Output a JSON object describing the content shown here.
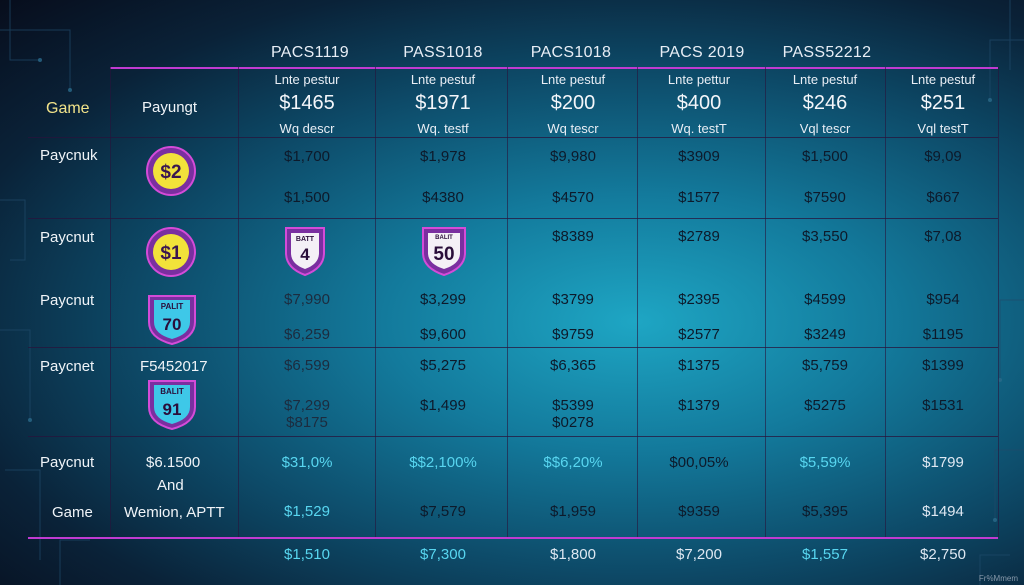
{
  "columns": [
    "PACS1119",
    "PASS1018",
    "PACS1018",
    "PACS 2019",
    "PASS52212"
  ],
  "corner": {
    "game": "Game",
    "payungt": "Payungt"
  },
  "header_row": {
    "line1": [
      "Lnte pestur",
      "Lnte pestuf",
      "Lnte pestuf",
      "Lnte pettur",
      "Lnte pestuf",
      "Lnte pestuf"
    ],
    "price": [
      "$1465",
      "$1971",
      "$200",
      "$400",
      "$246",
      "$251"
    ],
    "line3": [
      "Wq descr",
      "Wq. testf",
      "Wq tescr",
      "Wq. testT",
      "Vql tescr",
      "Vql testT"
    ]
  },
  "row_labels": [
    "Paycnuk",
    "Paycnut",
    "Paycnut",
    "Paycnet",
    "Paycnut",
    "Game"
  ],
  "side_text": {
    "f_code": "F5452017",
    "amount": "$6.1500",
    "and": "And",
    "wemion": "Wemion, APTT"
  },
  "badges": [
    {
      "text": "$2",
      "shape": "circle"
    },
    {
      "text": "$1",
      "shape": "circle"
    },
    {
      "text": "70",
      "top": "PALIT",
      "shape": "shield"
    },
    {
      "text": "91",
      "top": "BALIT",
      "shape": "shield"
    },
    {
      "text": "4",
      "top": "BATT",
      "shape": "shield"
    },
    {
      "text": "50",
      "top": "BALIT",
      "shape": "shield"
    }
  ],
  "rows": {
    "r1a": [
      "$1,700",
      "$1,978",
      "$9,980",
      "$3909",
      "$1,500",
      "$9,09"
    ],
    "r1b": [
      "$1,500",
      "$4380",
      "$4570",
      "$1577",
      "$7590",
      "$667"
    ],
    "r2a": [
      "$8389",
      "$2789",
      "$3,550",
      "$7,08"
    ],
    "r3a": [
      "$7,990",
      "$3,299",
      "$3799",
      "$2395",
      "$4599",
      "$954"
    ],
    "r3b": [
      "$6,259",
      "$9,600",
      "$9759",
      "$2577",
      "$3249",
      "$1195"
    ],
    "r4a": [
      "$6,599",
      "$5,275",
      "$6,365",
      "$1375",
      "$5,759",
      "$1399"
    ],
    "r4b": [
      "$7,299",
      "$1,499",
      "$5399",
      "$1379",
      "$5275",
      "$1531"
    ],
    "r4c": [
      "$8175",
      "$0278"
    ],
    "r5a": [
      "$31,0%",
      "$$2,100%",
      "$$6,20%",
      "$00,05%",
      "$5,59%",
      "$1799"
    ],
    "r5b": [
      "$1,529",
      "$7,579",
      "$1,959",
      "$9359",
      "$5,395",
      "$1494"
    ],
    "total": [
      "$1,510",
      "$7,300",
      "$1,800",
      "$7,200",
      "$1,557",
      "$2,750"
    ]
  },
  "credit": "Fr%Mmem",
  "colors": {
    "accent_magenta": "#c03bd1",
    "badge_yellow": "#f2e23a",
    "badge_purple": "#7a2fa0",
    "shield_cyan": "#3ec8e8"
  }
}
